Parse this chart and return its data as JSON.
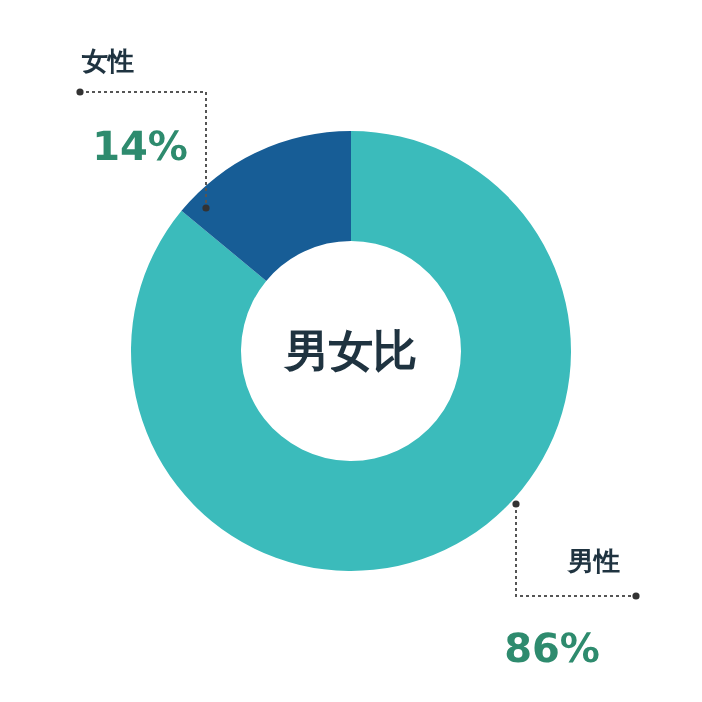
{
  "chart_data": {
    "type": "donut",
    "title": "男女比",
    "categories": [
      "男性",
      "女性"
    ],
    "values": [
      86,
      14
    ],
    "colors": [
      "#3bbbbb",
      "#175d96"
    ],
    "value_labels": [
      "86%",
      "14%"
    ]
  }
}
